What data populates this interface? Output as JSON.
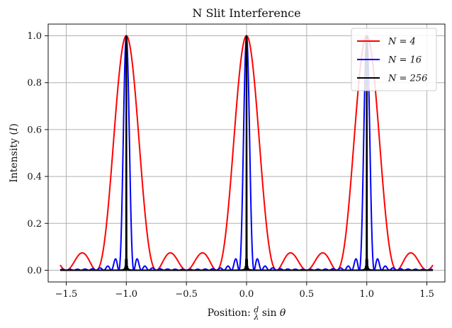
{
  "chart_data": {
    "type": "line",
    "title": "N Slit Interference",
    "xlabel": "Position: d/λ sin θ",
    "ylabel": "Intensity (I)",
    "xlim": [
      -1.65,
      1.65
    ],
    "ylim": [
      -0.05,
      1.05
    ],
    "xticks": [
      -1.5,
      -1.0,
      -0.5,
      0.0,
      0.5,
      1.0,
      1.5
    ],
    "xtick_labels": [
      "−1.5",
      "−1.0",
      "−0.5",
      "0.0",
      "0.5",
      "1.0",
      "1.5"
    ],
    "yticks": [
      0.0,
      0.2,
      0.4,
      0.6,
      0.8,
      1.0
    ],
    "ytick_labels": [
      "0.0",
      "0.2",
      "0.4",
      "0.6",
      "0.8",
      "1.0"
    ],
    "x_range": [
      -1.55,
      1.55
    ],
    "grid": true,
    "legend_position": "top-right",
    "series": [
      {
        "name": "N = 4",
        "N": 4,
        "color": "#ff0000",
        "description_values": "I = [sin(Nπx)/(N sin(πx))]^2, peaks 1.0 at x = -1, 0, 1; side lobes ≈ 0.07"
      },
      {
        "name": "N = 16",
        "N": 16,
        "color": "#0000ff",
        "description_values": "I = [sin(Nπx)/(N sin(πx))]^2, peaks 1.0 at x = -1, 0, 1; side lobes ≈ 0.05"
      },
      {
        "name": "N = 256",
        "N": 256,
        "color": "#000000",
        "description_values": "I = [sin(Nπx)/(N sin(πx))]^2, sharp peaks at x = -1, 0, 1"
      }
    ]
  }
}
